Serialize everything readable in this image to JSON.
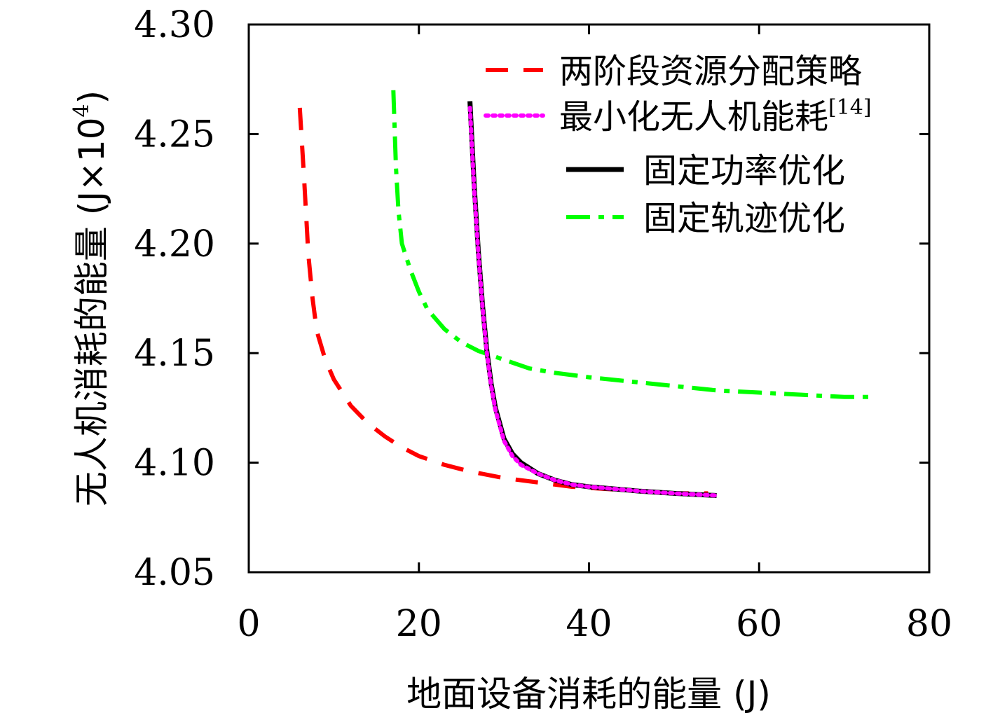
{
  "chart_data": {
    "type": "line",
    "title": "",
    "xlabel": "地面设备消耗的能量 (J)",
    "ylabel_main": "无人机消耗的能量 (J×10",
    "ylabel_exp": "4",
    "ylabel_close": ")",
    "xlim": [
      0,
      80
    ],
    "ylim": [
      4.05,
      4.3
    ],
    "xticks": [
      "0",
      "20",
      "40",
      "60",
      "80"
    ],
    "yticks": [
      "4.05",
      "4.10",
      "4.15",
      "4.20",
      "4.25",
      "4.30"
    ],
    "grid": false,
    "legend_position": "top-right",
    "series": [
      {
        "name": "两阶段资源分配策略",
        "color": "#ff0000",
        "dash": "dashed",
        "x": [
          6,
          6.5,
          7.0,
          7.5,
          8.0,
          9.0,
          10.0,
          12.0,
          14.0,
          16.0,
          18.0,
          20.0,
          23.0,
          26.0,
          30.0,
          34.0,
          38.0,
          42.0,
          46.0,
          50.0,
          54.0
        ],
        "y": [
          4.262,
          4.23,
          4.195,
          4.175,
          4.16,
          4.147,
          4.138,
          4.126,
          4.118,
          4.112,
          4.107,
          4.103,
          4.099,
          4.096,
          4.093,
          4.091,
          4.089,
          4.088,
          4.087,
          4.086,
          4.086
        ]
      },
      {
        "name": "最小化无人机能耗",
        "name_sup": "[14]",
        "color": "#ff00ff",
        "dash": "dotted",
        "x": [
          26.0,
          26.5,
          27.0,
          27.5,
          28.0,
          28.5,
          29.0,
          30.0,
          31.0,
          32.0,
          34.0,
          36.0,
          38.0,
          40.0,
          43.0,
          46.0,
          50.0,
          55.0
        ],
        "y": [
          4.262,
          4.225,
          4.195,
          4.17,
          4.15,
          4.135,
          4.124,
          4.11,
          4.103,
          4.099,
          4.095,
          4.092,
          4.09,
          4.089,
          4.088,
          4.087,
          4.086,
          4.085
        ]
      },
      {
        "name": "固定功率优化",
        "color": "#000000",
        "dash": "solid",
        "x": [
          26.0,
          26.5,
          27.0,
          27.5,
          28.0,
          28.5,
          29.0,
          30.0,
          31.0,
          32.0,
          34.0,
          36.0,
          38.0,
          40.0,
          43.0,
          46.0,
          50.0,
          55.0
        ],
        "y": [
          4.265,
          4.227,
          4.196,
          4.171,
          4.151,
          4.136,
          4.125,
          4.111,
          4.104,
          4.1,
          4.095,
          4.092,
          4.09,
          4.089,
          4.088,
          4.087,
          4.086,
          4.085
        ]
      },
      {
        "name": "固定轨迹优化",
        "color": "#00ff00",
        "dash": "dashdot",
        "x": [
          17.0,
          17.3,
          17.6,
          18.0,
          19.0,
          20.0,
          21.0,
          23.0,
          25.0,
          27.0,
          30.0,
          33.0,
          36.0,
          40.0,
          45.0,
          50.0,
          55.0,
          60.0,
          65.0,
          70.0,
          73.0
        ],
        "y": [
          4.27,
          4.235,
          4.215,
          4.2,
          4.188,
          4.178,
          4.17,
          4.161,
          4.155,
          4.151,
          4.147,
          4.143,
          4.141,
          4.139,
          4.137,
          4.135,
          4.133,
          4.132,
          4.131,
          4.13,
          4.13
        ]
      }
    ]
  }
}
